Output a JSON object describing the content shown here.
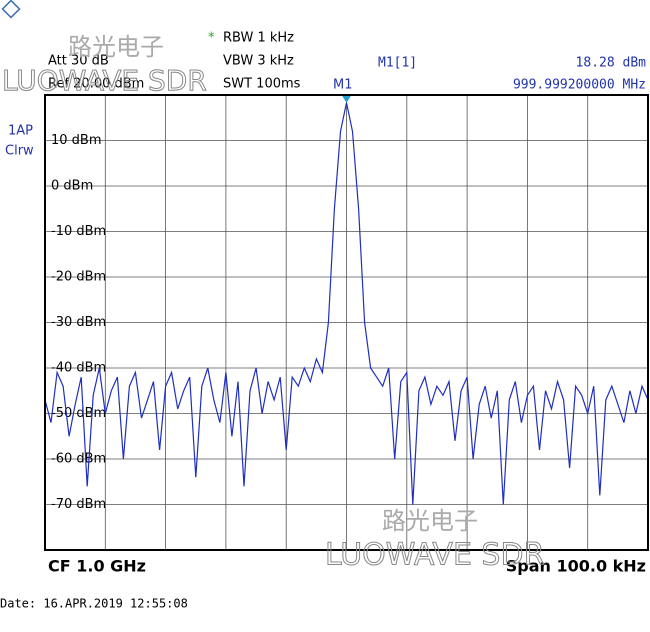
{
  "chart_data": {
    "type": "line",
    "header": {
      "rbw_flag": "*",
      "rbw": "RBW 1 kHz",
      "vbw": "VBW 3 kHz",
      "swt": "SWT 100ms",
      "att": "Att  30 dB",
      "ref": "Ref 20.00 dBm"
    },
    "trace_label": "1AP",
    "trace_mode": "Clrw",
    "marker": {
      "name": "M1",
      "readout_name": "M1[1]",
      "level": 18.28,
      "level_label": "18.28 dBm",
      "frequency": "999.999200000 MHz"
    },
    "center": "CF 1.0 GHz",
    "span": "Span 100.0 kHz",
    "date": "Date: 16.APR.2019  12:55:08",
    "watermark": {
      "chinese": "路光电子",
      "latin": "LUOWAVE SDR"
    },
    "color": "#1f2fbf",
    "ylim": [
      -80,
      20
    ],
    "yticks": [
      {
        "value": 10,
        "label": "10 dBm"
      },
      {
        "value": 0,
        "label": "0 dBm"
      },
      {
        "value": -10,
        "label": "-10 dBm"
      },
      {
        "value": -20,
        "label": "-20 dBm"
      },
      {
        "value": -30,
        "label": "-30 dBm"
      },
      {
        "value": -40,
        "label": "-40 dBm"
      },
      {
        "value": -50,
        "label": "-50 dBm"
      },
      {
        "value": -60,
        "label": "-60 dBm"
      },
      {
        "value": -70,
        "label": "-70 dBm"
      }
    ],
    "grid": true,
    "values": [
      -47,
      -52,
      -41,
      -44,
      -55,
      -48,
      -42,
      -66,
      -46,
      -40,
      -50,
      -45,
      -42,
      -60,
      -44,
      -41,
      -51,
      -47,
      -43,
      -58,
      -44,
      -41,
      -49,
      -45,
      -42,
      -64,
      -44,
      -40,
      -47,
      -52,
      -41,
      -55,
      -43,
      -66,
      -45,
      -40,
      -50,
      -43,
      -47,
      -42,
      -58,
      -42,
      -44,
      -40,
      -43,
      -38,
      -41,
      -30,
      -5,
      12,
      18.28,
      12,
      -5,
      -30,
      -40,
      -42,
      -44,
      -40,
      -60,
      -43,
      -41,
      -70,
      -45,
      -42,
      -48,
      -44,
      -46,
      -43,
      -56,
      -45,
      -42,
      -60,
      -48,
      -44,
      -51,
      -45,
      -70,
      -47,
      -43,
      -52,
      -46,
      -44,
      -58,
      -45,
      -49,
      -43,
      -47,
      -62,
      -44,
      -46,
      -50,
      -44,
      -68,
      -47,
      -44,
      -48,
      -52,
      -45,
      -50,
      -44,
      -47
    ]
  }
}
